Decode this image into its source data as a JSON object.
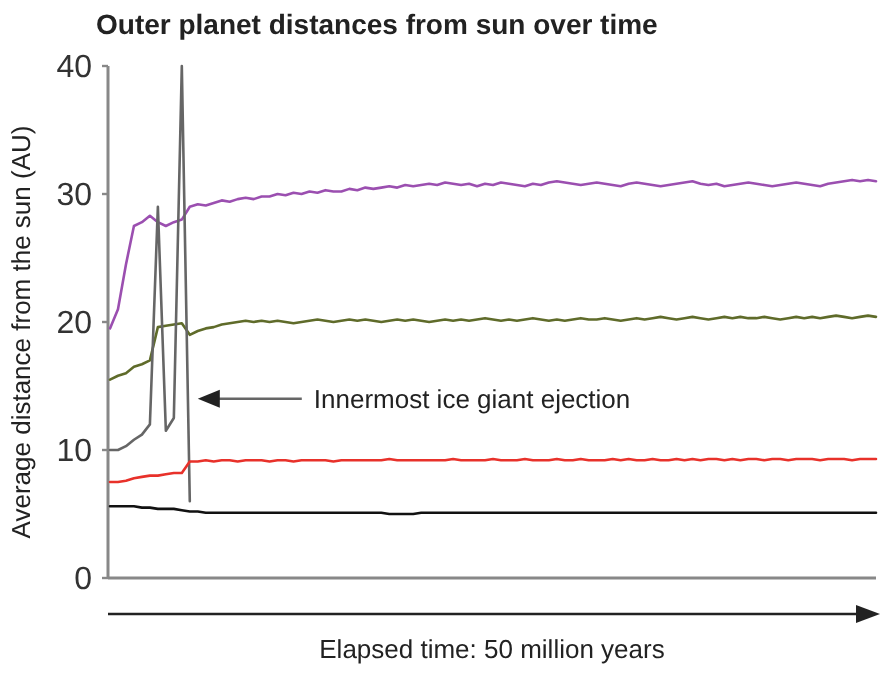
{
  "chart_data": {
    "type": "line",
    "title": "Outer planet distances from sun over time",
    "xlabel": "Elapsed time: 50 million years",
    "ylabel": "Average distance from the sun (AU)",
    "categories": [
      null,
      null,
      null,
      null,
      null,
      null,
      null,
      null,
      null,
      null,
      null,
      null,
      null,
      null,
      null,
      null,
      null,
      null,
      null,
      null,
      null,
      null,
      null,
      null,
      null,
      null,
      null,
      null,
      null,
      null,
      null,
      null,
      null,
      null,
      null,
      null,
      null,
      null,
      null,
      null,
      null,
      null,
      null,
      null,
      null,
      null,
      null,
      null,
      null,
      null,
      null,
      null,
      null,
      null,
      null,
      null,
      null,
      null,
      null,
      null,
      null,
      null,
      null,
      null,
      null,
      null,
      null,
      null,
      null,
      null,
      null,
      null,
      null,
      null,
      null,
      null,
      null,
      null,
      null,
      null,
      null,
      null,
      null,
      null,
      null,
      null,
      null,
      null,
      null,
      null,
      null,
      null,
      null,
      null,
      null,
      null,
      null
    ],
    "series": [
      {
        "color": "#9b4fb0",
        "values": [
          19.5,
          21,
          24.5,
          27.5,
          27.8,
          28.3,
          27.8,
          27.5,
          27.8,
          28,
          29,
          29.2,
          29.1,
          29.3,
          29.5,
          29.4,
          29.6,
          29.7,
          29.6,
          29.8,
          29.8,
          30,
          29.9,
          30.1,
          30,
          30.2,
          30.1,
          30.3,
          30.2,
          30.2,
          30.4,
          30.3,
          30.5,
          30.4,
          30.5,
          30.6,
          30.5,
          30.7,
          30.6,
          30.7,
          30.8,
          30.7,
          30.9,
          30.8,
          30.7,
          30.8,
          30.6,
          30.8,
          30.7,
          30.9,
          30.8,
          30.7,
          30.6,
          30.8,
          30.7,
          30.9,
          31,
          30.9,
          30.8,
          30.7,
          30.8,
          30.9,
          30.8,
          30.7,
          30.6,
          30.8,
          30.9,
          30.8,
          30.7,
          30.6,
          30.7,
          30.8,
          30.9,
          31,
          30.8,
          30.7,
          30.8,
          30.6,
          30.7,
          30.8,
          30.9,
          30.8,
          30.7,
          30.6,
          30.7,
          30.8,
          30.9,
          30.8,
          30.7,
          30.6,
          30.8,
          30.9,
          31,
          31.1,
          31,
          31.1,
          31
        ]
      },
      {
        "color": "#5f6b2a",
        "values": [
          15.5,
          15.8,
          16,
          16.5,
          16.7,
          17,
          19.6,
          19.7,
          19.8,
          19.9,
          19,
          19.3,
          19.5,
          19.6,
          19.8,
          19.9,
          20,
          20.1,
          20,
          20.1,
          20,
          20.1,
          20,
          19.9,
          20,
          20.1,
          20.2,
          20.1,
          20,
          20.1,
          20.2,
          20.1,
          20.2,
          20.1,
          20,
          20.1,
          20.2,
          20.1,
          20.2,
          20.1,
          20,
          20.1,
          20.2,
          20.1,
          20.2,
          20.1,
          20.2,
          20.3,
          20.2,
          20.1,
          20.2,
          20.1,
          20.2,
          20.3,
          20.2,
          20.1,
          20.2,
          20.1,
          20.2,
          20.3,
          20.2,
          20.2,
          20.3,
          20.2,
          20.1,
          20.2,
          20.3,
          20.2,
          20.3,
          20.4,
          20.3,
          20.2,
          20.3,
          20.4,
          20.3,
          20.2,
          20.3,
          20.4,
          20.3,
          20.4,
          20.3,
          20.3,
          20.4,
          20.3,
          20.2,
          20.3,
          20.4,
          20.3,
          20.4,
          20.3,
          20.4,
          20.5,
          20.4,
          20.3,
          20.4,
          20.5,
          20.4
        ]
      },
      {
        "color": "#666666",
        "values": [
          10,
          10,
          10.3,
          10.8,
          11.2,
          12,
          29,
          11.5,
          12.5,
          40,
          6,
          null,
          null,
          null,
          null,
          null,
          null,
          null,
          null,
          null,
          null,
          null,
          null,
          null,
          null,
          null,
          null,
          null,
          null,
          null,
          null,
          null,
          null,
          null,
          null,
          null,
          null,
          null,
          null,
          null,
          null,
          null,
          null,
          null,
          null,
          null,
          null,
          null,
          null,
          null,
          null,
          null,
          null,
          null,
          null,
          null,
          null,
          null,
          null,
          null,
          null,
          null,
          null,
          null,
          null,
          null,
          null,
          null,
          null,
          null,
          null,
          null,
          null,
          null,
          null,
          null,
          null,
          null,
          null,
          null,
          null,
          null,
          null,
          null,
          null,
          null,
          null,
          null,
          null,
          null,
          null,
          null,
          null,
          null,
          null,
          null,
          null
        ]
      },
      {
        "color": "#e8312a",
        "values": [
          7.5,
          7.5,
          7.6,
          7.8,
          7.9,
          8,
          8,
          8.1,
          8.2,
          8.2,
          9.1,
          9.1,
          9.2,
          9.1,
          9.2,
          9.2,
          9.1,
          9.2,
          9.2,
          9.2,
          9.1,
          9.2,
          9.2,
          9.1,
          9.2,
          9.2,
          9.2,
          9.2,
          9.1,
          9.2,
          9.2,
          9.2,
          9.2,
          9.2,
          9.2,
          9.3,
          9.2,
          9.2,
          9.2,
          9.2,
          9.2,
          9.2,
          9.2,
          9.3,
          9.2,
          9.2,
          9.2,
          9.2,
          9.3,
          9.2,
          9.2,
          9.2,
          9.3,
          9.2,
          9.2,
          9.2,
          9.3,
          9.2,
          9.2,
          9.3,
          9.2,
          9.2,
          9.2,
          9.3,
          9.2,
          9.3,
          9.2,
          9.2,
          9.3,
          9.2,
          9.2,
          9.3,
          9.2,
          9.3,
          9.2,
          9.3,
          9.3,
          9.2,
          9.3,
          9.2,
          9.3,
          9.3,
          9.2,
          9.3,
          9.3,
          9.2,
          9.3,
          9.3,
          9.3,
          9.2,
          9.3,
          9.3,
          9.3,
          9.2,
          9.3,
          9.3,
          9.3
        ]
      },
      {
        "color": "#111111",
        "values": [
          5.6,
          5.6,
          5.6,
          5.6,
          5.5,
          5.5,
          5.4,
          5.4,
          5.4,
          5.3,
          5.2,
          5.2,
          5.1,
          5.1,
          5.1,
          5.1,
          5.1,
          5.1,
          5.1,
          5.1,
          5.1,
          5.1,
          5.1,
          5.1,
          5.1,
          5.1,
          5.1,
          5.1,
          5.1,
          5.1,
          5.1,
          5.1,
          5.1,
          5.1,
          5.1,
          5.0,
          5.0,
          5.0,
          5.0,
          5.1,
          5.1,
          5.1,
          5.1,
          5.1,
          5.1,
          5.1,
          5.1,
          5.1,
          5.1,
          5.1,
          5.1,
          5.1,
          5.1,
          5.1,
          5.1,
          5.1,
          5.1,
          5.1,
          5.1,
          5.1,
          5.1,
          5.1,
          5.1,
          5.1,
          5.1,
          5.1,
          5.1,
          5.1,
          5.1,
          5.1,
          5.1,
          5.1,
          5.1,
          5.1,
          5.1,
          5.1,
          5.1,
          5.1,
          5.1,
          5.1,
          5.1,
          5.1,
          5.1,
          5.1,
          5.1,
          5.1,
          5.1,
          5.1,
          5.1,
          5.1,
          5.1,
          5.1,
          5.1,
          5.1,
          5.1,
          5.1,
          5.1
        ]
      }
    ],
    "annotations": [
      "Innermost ice giant ejection"
    ],
    "ylim": [
      0,
      40
    ],
    "yticks": [
      0,
      10,
      20,
      30,
      40
    ],
    "tick_labels": "y"
  }
}
